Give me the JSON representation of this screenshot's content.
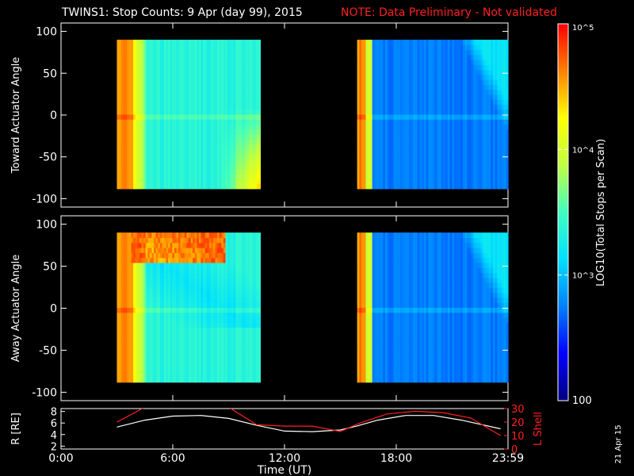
{
  "header": {
    "title": "TWINS1: Stop Counts:  9 Apr (day  99), 2015",
    "note": "NOTE: Data Preliminary - Not validated"
  },
  "colorbar": {
    "label": "LOG10(Total Stops per Scan)",
    "ticks": [
      {
        "value": 100,
        "label": "100"
      },
      {
        "value": 1000,
        "label": "10^3"
      },
      {
        "value": 10000,
        "label": "10^4"
      },
      {
        "value": 100000,
        "label": "10^5"
      }
    ],
    "range": [
      100,
      100000
    ],
    "scale": "log",
    "colors": [
      "#00007f",
      "#0000ff",
      "#0080ff",
      "#00e0ff",
      "#40ffc0",
      "#c0ff40",
      "#ffff00",
      "#ff8000",
      "#ff0000"
    ]
  },
  "x_axis": {
    "label": "Time (UT)",
    "ticks": [
      {
        "value": 0,
        "label": "0:00"
      },
      {
        "value": 6,
        "label": "6:00"
      },
      {
        "value": 12,
        "label": "12:00"
      },
      {
        "value": 18,
        "label": "18:00"
      },
      {
        "value": 24,
        "label": "23:59"
      }
    ],
    "range": [
      0,
      24
    ]
  },
  "stamp": "21 Apr 15",
  "chart_data": [
    {
      "type": "heatmap",
      "ylabel": "Toward Actuator Angle",
      "ylim": [
        -110,
        110
      ],
      "yticks": [
        100,
        50,
        0,
        -50,
        -100
      ],
      "data_y_range": [
        -88,
        90
      ],
      "x_units": "hours UT",
      "segments": [
        {
          "start": 3.0,
          "end": 10.7
        },
        {
          "start": 15.9,
          "end": 24.0
        }
      ]
    },
    {
      "type": "heatmap",
      "ylabel": "Away Actuator Angle",
      "ylim": [
        -110,
        110
      ],
      "yticks": [
        100,
        50,
        0,
        -50,
        -100
      ],
      "data_y_range": [
        -88,
        90
      ],
      "x_units": "hours UT",
      "segments": [
        {
          "start": 3.0,
          "end": 10.7
        },
        {
          "start": 15.9,
          "end": 24.0
        }
      ]
    },
    {
      "type": "line",
      "ylabel": "R [RE]",
      "ylim": [
        1.5,
        8.5
      ],
      "yticks": [
        8,
        6,
        4,
        2
      ],
      "ylabel2": "L Shell",
      "ylim2": [
        0,
        30
      ],
      "yticks2": [
        30,
        20,
        10,
        0
      ],
      "series": [
        {
          "name": "R [RE]",
          "color": "#ffffff",
          "axis": "left",
          "x": [
            3.0,
            4.5,
            6.0,
            7.5,
            9.0,
            10.5,
            12.0,
            13.5,
            15.0,
            15.9,
            17.0,
            18.5,
            20.0,
            21.5,
            23.6
          ],
          "y": [
            5.3,
            6.5,
            7.2,
            7.3,
            6.8,
            5.6,
            4.6,
            4.5,
            4.8,
            5.5,
            6.5,
            7.3,
            7.3,
            6.5,
            5.0
          ]
        },
        {
          "name": "L Shell",
          "color": "#ff2020",
          "axis": "right",
          "x": [
            3.0,
            4.5,
            9.0,
            10.5,
            12.0,
            13.5,
            15.0,
            16.0,
            17.5,
            19.0,
            20.5,
            22.0,
            23.6
          ],
          "y": [
            20,
            31,
            31,
            18,
            17,
            17,
            13,
            19,
            26,
            28,
            27,
            23,
            10
          ]
        }
      ]
    }
  ]
}
